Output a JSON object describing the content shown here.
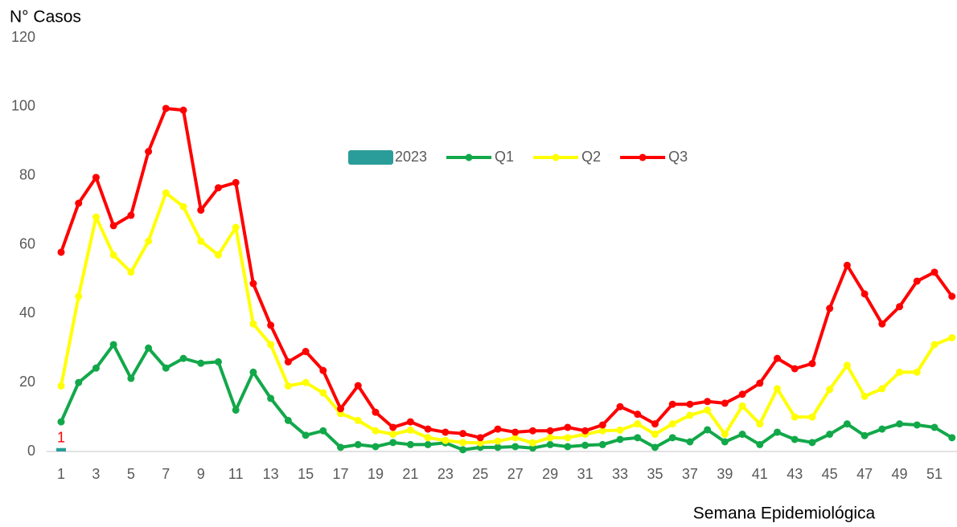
{
  "chart_data": {
    "type": "line",
    "y_label": "N° Casos",
    "x_label": "Semana Epidemiológica",
    "categories": [
      1,
      null,
      3,
      null,
      5,
      null,
      7,
      null,
      9,
      null,
      11,
      null,
      13,
      null,
      15,
      null,
      17,
      null,
      19,
      null,
      21,
      null,
      23,
      null,
      25,
      null,
      27,
      null,
      29,
      null,
      31,
      null,
      33,
      null,
      35,
      null,
      37,
      null,
      39,
      null,
      41,
      null,
      43,
      null,
      45,
      null,
      47,
      null,
      49,
      null,
      51,
      null
    ],
    "ylim": [
      0,
      120
    ],
    "yticks": [
      0,
      20,
      40,
      60,
      80,
      100,
      120
    ],
    "series": [
      {
        "name": "2023",
        "type": "bar",
        "color": "#2a9d9a",
        "values": [
          1,
          null,
          null,
          null,
          null,
          null,
          null,
          null,
          null,
          null,
          null,
          null,
          null,
          null,
          null,
          null,
          null,
          null,
          null,
          null,
          null,
          null,
          null,
          null,
          null,
          null,
          null,
          null,
          null,
          null,
          null,
          null,
          null,
          null,
          null,
          null,
          null,
          null,
          null,
          null,
          null,
          null,
          null,
          null,
          null,
          null,
          null,
          null,
          null,
          null,
          null,
          null
        ]
      },
      {
        "name": "Q1",
        "color": "#12a84a",
        "values": [
          8.6,
          20,
          24.2,
          31,
          21.2,
          30,
          24.2,
          27,
          25.6,
          26,
          12,
          23,
          15.4,
          9,
          4.7,
          6,
          1.2,
          2,
          1.4,
          2.6,
          2,
          2,
          2.5,
          0.5,
          1.2,
          1.2,
          1.4,
          1,
          2,
          1.4,
          1.8,
          2,
          3.5,
          4,
          1.2,
          4,
          2.8,
          6.3,
          2.8,
          5,
          2,
          5.6,
          3.5,
          2.6,
          5,
          8,
          4.6,
          6.5,
          8,
          7.7,
          7,
          4
        ]
      },
      {
        "name": "Q2",
        "color": "#ffff00",
        "values": [
          19,
          45,
          68,
          57,
          52,
          61,
          75,
          71,
          61,
          57,
          65,
          37,
          31,
          19,
          20,
          17,
          11,
          9,
          6,
          5,
          6.2,
          4,
          3.2,
          2.6,
          2.5,
          3,
          4,
          2.5,
          4,
          4,
          5,
          6,
          6.2,
          8,
          5,
          8,
          10.5,
          12,
          5,
          13.2,
          8,
          18.2,
          10,
          10,
          18,
          25,
          16,
          18.2,
          23,
          23,
          31,
          33
        ]
      },
      {
        "name": "Q3",
        "color": "#ff0000",
        "values": [
          57.8,
          72,
          79.5,
          65.5,
          68.5,
          87,
          99.5,
          99,
          70,
          76.5,
          78,
          48.7,
          36.6,
          26,
          29,
          23.5,
          12.4,
          19.1,
          11.4,
          7,
          8.6,
          6.5,
          5.6,
          5.2,
          4,
          6.5,
          5.6,
          6,
          6,
          7,
          6,
          7.7,
          13,
          10.8,
          8,
          13.7,
          13.7,
          14.5,
          14,
          16.6,
          19.8,
          27,
          24,
          25.5,
          41.5,
          54,
          45.7,
          37,
          42,
          49.4,
          52,
          45
        ]
      }
    ]
  }
}
